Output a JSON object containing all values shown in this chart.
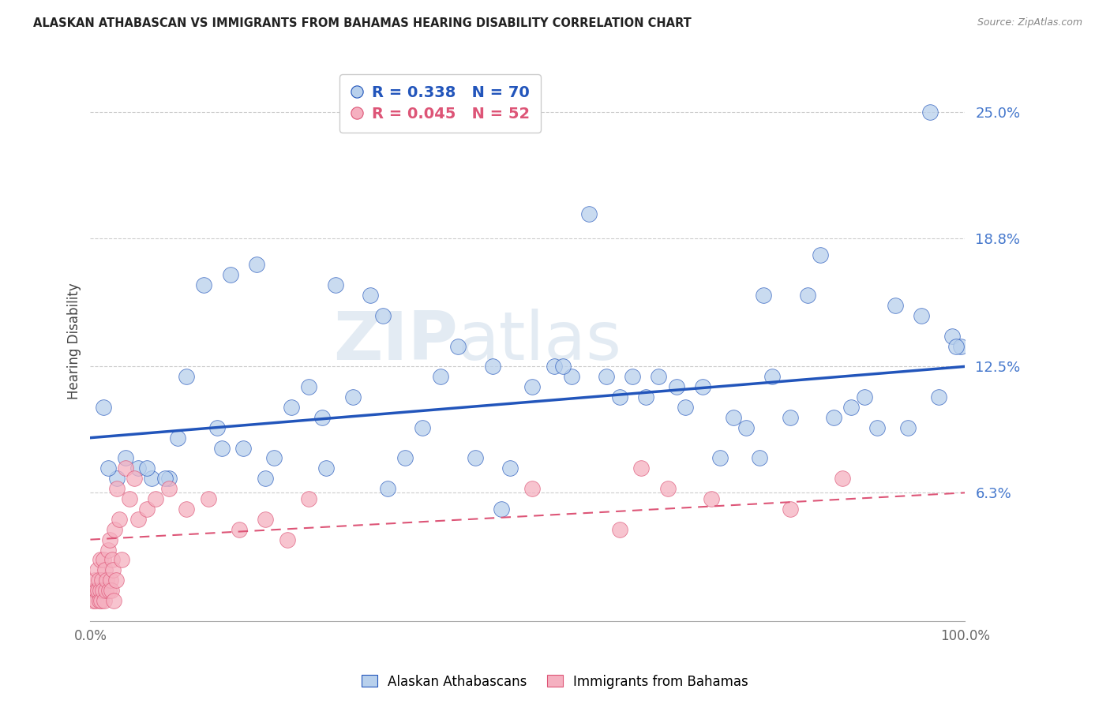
{
  "title": "ALASKAN ATHABASCAN VS IMMIGRANTS FROM BAHAMAS HEARING DISABILITY CORRELATION CHART",
  "source": "Source: ZipAtlas.com",
  "ylabel": "Hearing Disability",
  "legend1_label": "Alaskan Athabascans",
  "legend2_label": "Immigrants from Bahamas",
  "R1": 0.338,
  "N1": 70,
  "R2": 0.045,
  "N2": 52,
  "xlim": [
    0.0,
    100.0
  ],
  "ylim": [
    0.0,
    27.5
  ],
  "yticks": [
    6.3,
    12.5,
    18.8,
    25.0
  ],
  "ytick_labels": [
    "6.3%",
    "12.5%",
    "18.8%",
    "25.0%"
  ],
  "xticks": [
    0.0,
    12.5,
    25.0,
    37.5,
    50.0,
    62.5,
    75.0,
    87.5,
    100.0
  ],
  "xtick_labels": [
    "0.0%",
    "",
    "",
    "",
    "",
    "",
    "",
    "",
    "100.0%"
  ],
  "color_blue": "#b8d0ec",
  "color_pink": "#f5b0c0",
  "line_blue": "#2255bb",
  "line_pink": "#dd5577",
  "background": "#ffffff",
  "blue_line_start_y": 9.0,
  "blue_line_end_y": 12.5,
  "pink_line_start_y": 4.0,
  "pink_line_end_y": 6.3,
  "blue_points_x": [
    1.5,
    3.0,
    5.5,
    7.0,
    9.0,
    11.0,
    13.0,
    14.5,
    16.0,
    17.5,
    19.0,
    21.0,
    23.0,
    25.0,
    26.5,
    28.0,
    30.0,
    32.0,
    33.5,
    36.0,
    38.0,
    40.0,
    42.0,
    44.0,
    46.0,
    48.0,
    50.5,
    53.0,
    55.0,
    57.0,
    59.0,
    60.5,
    62.0,
    63.5,
    65.0,
    67.0,
    68.0,
    70.0,
    72.0,
    73.5,
    75.0,
    76.5,
    78.0,
    80.0,
    82.0,
    83.5,
    85.0,
    87.0,
    88.5,
    90.0,
    92.0,
    93.5,
    95.0,
    97.0,
    98.5,
    99.5,
    2.0,
    4.0,
    6.5,
    8.5,
    10.0,
    15.0,
    20.0,
    27.0,
    34.0,
    47.0,
    54.0,
    77.0,
    96.0,
    99.0
  ],
  "blue_points_y": [
    10.5,
    7.0,
    7.5,
    7.0,
    7.0,
    12.0,
    16.5,
    9.5,
    17.0,
    8.5,
    17.5,
    8.0,
    10.5,
    11.5,
    10.0,
    16.5,
    11.0,
    16.0,
    15.0,
    8.0,
    9.5,
    12.0,
    13.5,
    8.0,
    12.5,
    7.5,
    11.5,
    12.5,
    12.0,
    20.0,
    12.0,
    11.0,
    12.0,
    11.0,
    12.0,
    11.5,
    10.5,
    11.5,
    8.0,
    10.0,
    9.5,
    8.0,
    12.0,
    10.0,
    16.0,
    18.0,
    10.0,
    10.5,
    11.0,
    9.5,
    15.5,
    9.5,
    15.0,
    11.0,
    14.0,
    13.5,
    7.5,
    8.0,
    7.5,
    7.0,
    9.0,
    8.5,
    7.0,
    7.5,
    6.5,
    5.5,
    12.5,
    16.0,
    25.0,
    13.5
  ],
  "pink_points_x": [
    0.3,
    0.4,
    0.5,
    0.6,
    0.7,
    0.8,
    0.9,
    1.0,
    1.05,
    1.1,
    1.15,
    1.2,
    1.3,
    1.4,
    1.5,
    1.6,
    1.7,
    1.8,
    1.9,
    2.0,
    2.1,
    2.2,
    2.3,
    2.4,
    2.5,
    2.6,
    2.7,
    2.8,
    2.9,
    3.0,
    3.3,
    3.6,
    4.0,
    4.5,
    5.0,
    5.5,
    6.5,
    7.5,
    9.0,
    11.0,
    13.5,
    17.0,
    20.0,
    22.5,
    25.0,
    50.5,
    60.5,
    63.0,
    66.0,
    71.0,
    80.0,
    86.0
  ],
  "pink_points_y": [
    1.0,
    1.5,
    2.0,
    1.0,
    1.5,
    2.5,
    1.5,
    2.0,
    1.0,
    3.0,
    1.5,
    1.0,
    2.0,
    1.5,
    3.0,
    1.0,
    2.5,
    1.5,
    2.0,
    3.5,
    1.5,
    4.0,
    2.0,
    1.5,
    3.0,
    2.5,
    1.0,
    4.5,
    2.0,
    6.5,
    5.0,
    3.0,
    7.5,
    6.0,
    7.0,
    5.0,
    5.5,
    6.0,
    6.5,
    5.5,
    6.0,
    4.5,
    5.0,
    4.0,
    6.0,
    6.5,
    4.5,
    7.5,
    6.5,
    6.0,
    5.5,
    7.0
  ],
  "watermark_zip": "ZIP",
  "watermark_atlas": "atlas"
}
